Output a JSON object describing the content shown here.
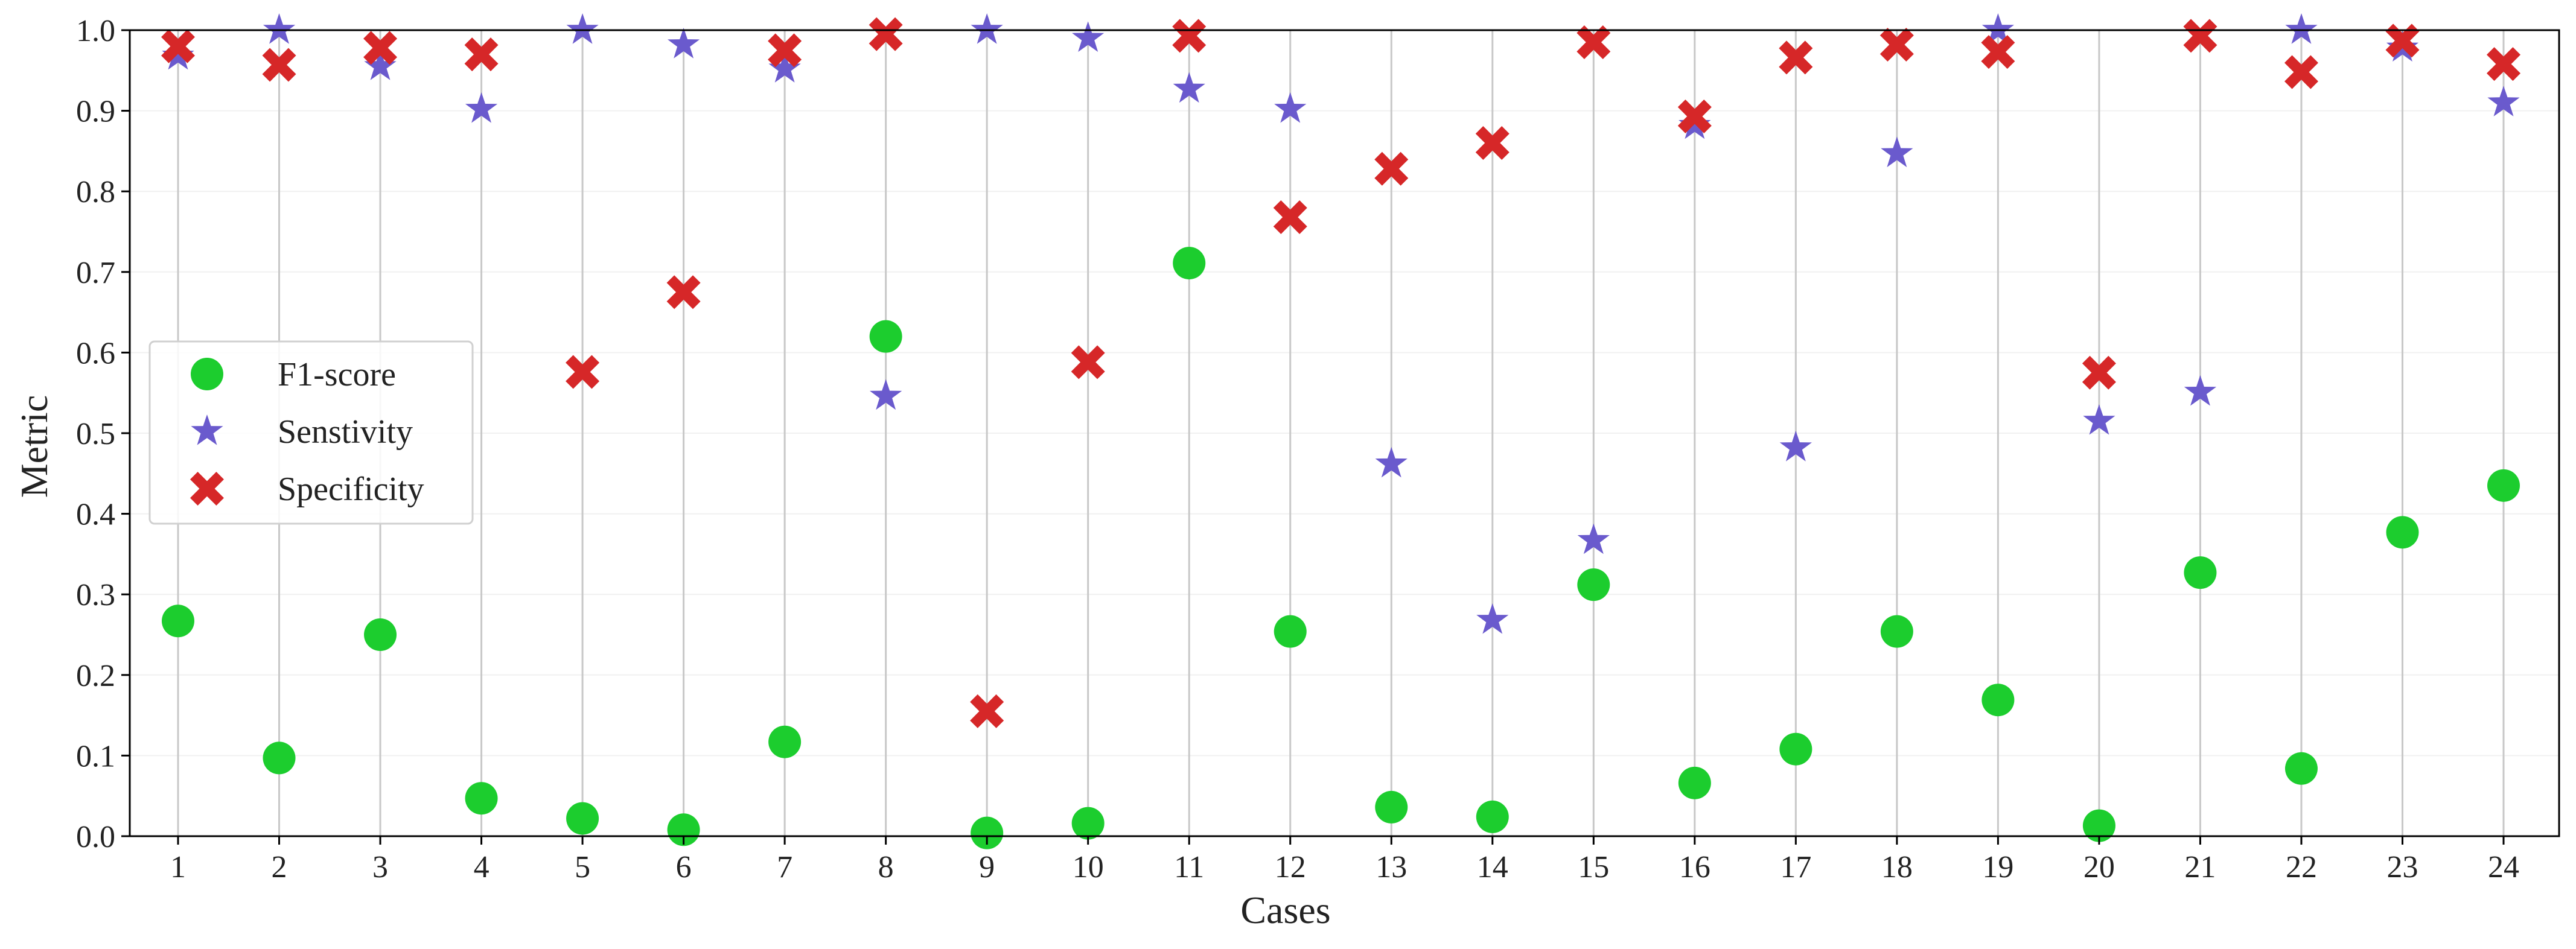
{
  "chart_data": {
    "type": "scatter",
    "title": "",
    "xlabel": "Cases",
    "ylabel": "Metric",
    "ylim": [
      0,
      1.0
    ],
    "yticks": [
      "0.0",
      "0.1",
      "0.2",
      "0.3",
      "0.4",
      "0.5",
      "0.6",
      "0.7",
      "0.8",
      "0.9",
      "1.0"
    ],
    "categories": [
      "1",
      "2",
      "3",
      "4",
      "5",
      "6",
      "7",
      "8",
      "9",
      "10",
      "11",
      "12",
      "13",
      "14",
      "15",
      "16",
      "17",
      "18",
      "19",
      "20",
      "21",
      "22",
      "23",
      "24"
    ],
    "vertical_grid": true,
    "legend_position": "center-left",
    "series": [
      {
        "name": "F1-score",
        "marker": "circle",
        "color": "#1ccd2e",
        "values": [
          0.267,
          0.097,
          0.25,
          0.047,
          0.022,
          0.008,
          0.117,
          0.62,
          0.004,
          0.016,
          0.711,
          0.254,
          0.036,
          0.024,
          0.312,
          0.066,
          0.108,
          0.254,
          0.169,
          0.013,
          0.327,
          0.084,
          0.377,
          0.435
        ]
      },
      {
        "name": "Senstivity",
        "marker": "star",
        "color": "#6a5acd",
        "values": [
          0.968,
          1.0,
          0.955,
          0.902,
          1.0,
          0.982,
          0.952,
          0.546,
          1.0,
          0.99,
          0.927,
          0.902,
          0.462,
          0.268,
          0.367,
          0.882,
          0.482,
          0.847,
          1.0,
          0.515,
          0.551,
          1.0,
          0.978,
          0.91
        ]
      },
      {
        "name": "Specificity",
        "marker": "x",
        "color": "#d62728",
        "values": [
          0.98,
          0.957,
          0.978,
          0.97,
          0.576,
          0.675,
          0.975,
          0.995,
          0.155,
          0.588,
          0.993,
          0.768,
          0.828,
          0.86,
          0.985,
          0.893,
          0.966,
          0.982,
          0.973,
          0.575,
          0.993,
          0.948,
          0.987,
          0.958
        ]
      }
    ]
  }
}
